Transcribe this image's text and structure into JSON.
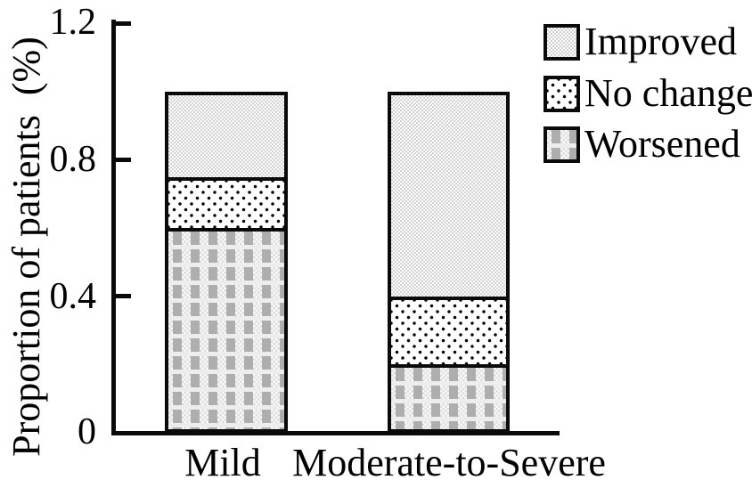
{
  "figure": {
    "background": "#ffffff"
  },
  "axis": {
    "ylabel": "Proportion of patients  (%)",
    "tick_labels": [
      "0",
      "0.4",
      "0.8",
      "1.2"
    ],
    "categories": [
      "Mild",
      "Moderate-to-Severe"
    ]
  },
  "legend": {
    "position": "top-right",
    "items": [
      {
        "label": "Improved",
        "pattern": "improved"
      },
      {
        "label": "No change",
        "pattern": "nochange"
      },
      {
        "label": "Worsened",
        "pattern": "worsened"
      }
    ]
  },
  "chart_data": {
    "type": "bar",
    "stacked": true,
    "title": "",
    "xlabel": "",
    "ylabel": "Proportion of patients (%)",
    "categories": [
      "Mild",
      "Moderate-to-Severe"
    ],
    "series": [
      {
        "name": "Improved",
        "values": [
          0.25,
          0.6
        ]
      },
      {
        "name": "No change",
        "values": [
          0.15,
          0.2
        ]
      },
      {
        "name": "Worsened",
        "values": [
          0.6,
          0.2
        ]
      }
    ],
    "ylim": [
      0,
      1.2
    ],
    "yticks": [
      0,
      0.4,
      0.8,
      1.2
    ],
    "grid": false,
    "legend_position": "top-right"
  },
  "colors": {
    "line": "#0a0a0a",
    "text": "#000000",
    "improved_fill": "#d8d8d8",
    "nochange_dot": "#050505",
    "worsened_gray": "#aeaeae"
  }
}
